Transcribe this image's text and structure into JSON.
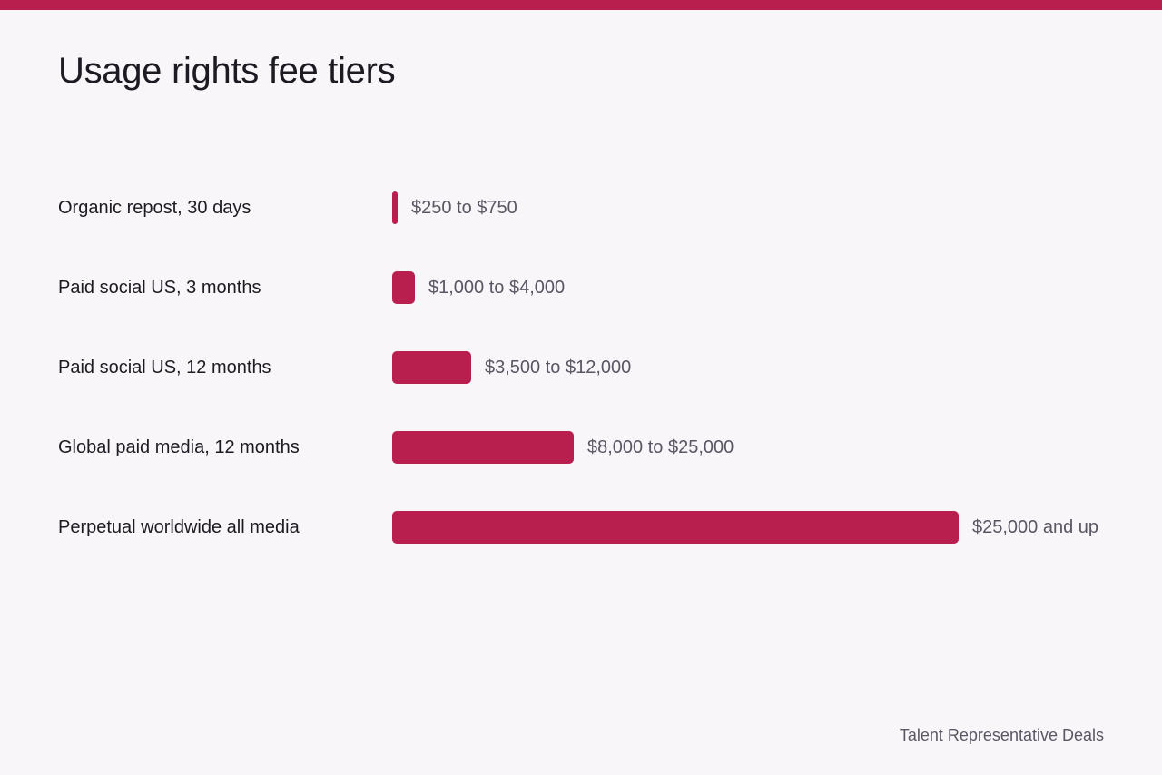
{
  "header": {
    "accent_color": "#b81f4e"
  },
  "chart_data": {
    "type": "bar",
    "orientation": "horizontal",
    "title": "Usage rights fee tiers",
    "categories": [
      "Organic repost, 30 days",
      "Paid social US, 3 months",
      "Paid social US, 12 months",
      "Global paid media, 12 months",
      "Perpetual worldwide all media"
    ],
    "series": [
      {
        "low": [
          250,
          1000,
          3500,
          8000,
          25000
        ],
        "high": [
          750,
          4000,
          12000,
          25000,
          null
        ]
      }
    ],
    "value_labels": [
      "$250 to $750",
      "$1,000 to $4,000",
      "$3,500 to $12,000",
      "$8,000 to $25,000",
      "$25,000 and up"
    ],
    "bar_values": [
      250,
      1000,
      3500,
      8000,
      25000
    ],
    "xlim": [
      0,
      25000
    ],
    "grid": false,
    "legend": "none",
    "bar_color": "#b81f4e"
  },
  "footer": {
    "source": "Talent Representative Deals"
  }
}
